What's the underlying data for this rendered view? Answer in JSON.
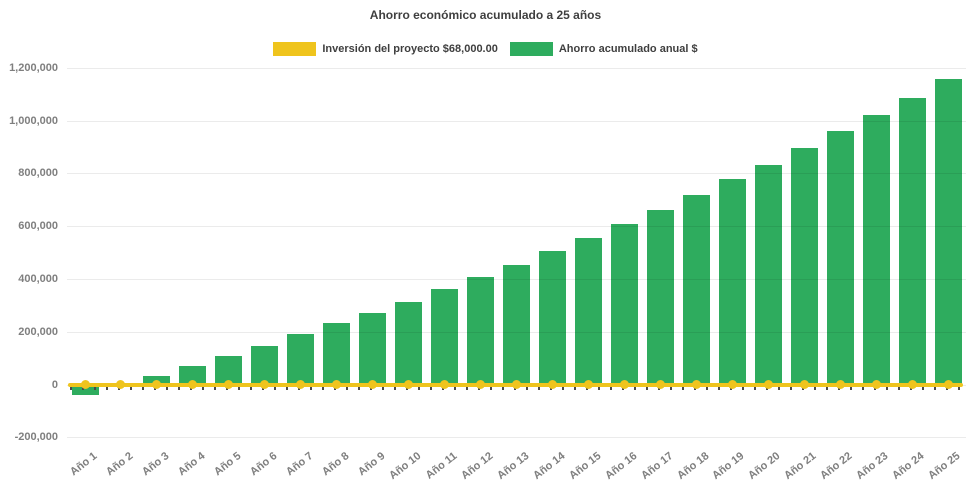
{
  "chart_data": {
    "type": "bar",
    "title": "Ahorro económico acumulado a 25 años",
    "legend_position": "top",
    "grid": "faint-horizontal",
    "categories": [
      "Año 1",
      "Año 2",
      "Año 3",
      "Año 4",
      "Año 5",
      "Año 6",
      "Año 7",
      "Año 8",
      "Año 9",
      "Año 10",
      "Año 11",
      "Año 12",
      "Año 13",
      "Año 14",
      "Año 15",
      "Año 16",
      "Año 17",
      "Año 18",
      "Año 19",
      "Año 20",
      "Año 21",
      "Año 22",
      "Año 23",
      "Año 24",
      "Año 25"
    ],
    "series": [
      {
        "name": "Inversión del proyecto $68,000.00",
        "type": "line",
        "color": "#efc41d",
        "values": [
          0,
          0,
          0,
          0,
          0,
          0,
          0,
          0,
          0,
          0,
          0,
          0,
          0,
          0,
          0,
          0,
          0,
          0,
          0,
          0,
          0,
          0,
          0,
          0,
          0
        ]
      },
      {
        "name": "Ahorro acumulado anual $",
        "type": "bar",
        "color": "#2eac5e",
        "values": [
          -38000,
          0,
          33000,
          71000,
          108000,
          147000,
          193000,
          233000,
          269000,
          312000,
          363000,
          407000,
          451000,
          506000,
          556000,
          609000,
          662000,
          718000,
          780000,
          830000,
          894000,
          960000,
          1022000,
          1087000,
          1156000
        ]
      }
    ],
    "y_axis": {
      "min": -200000,
      "max": 1200000,
      "tick_step": 200000,
      "tick_values": [
        -200000,
        0,
        200000,
        400000,
        600000,
        800000,
        1000000,
        1200000
      ],
      "tick_labels": [
        "-200,000",
        "0",
        "200,000",
        "400,000",
        "600,000",
        "800,000",
        "1,000,000",
        "1,200,000"
      ]
    }
  },
  "colors": {
    "background": "#ffffff",
    "title_text": "#3f3f3f",
    "axis_text": "#7f7f7f",
    "investment_line": "#efc41d",
    "savings_bar": "#2eac5e"
  }
}
